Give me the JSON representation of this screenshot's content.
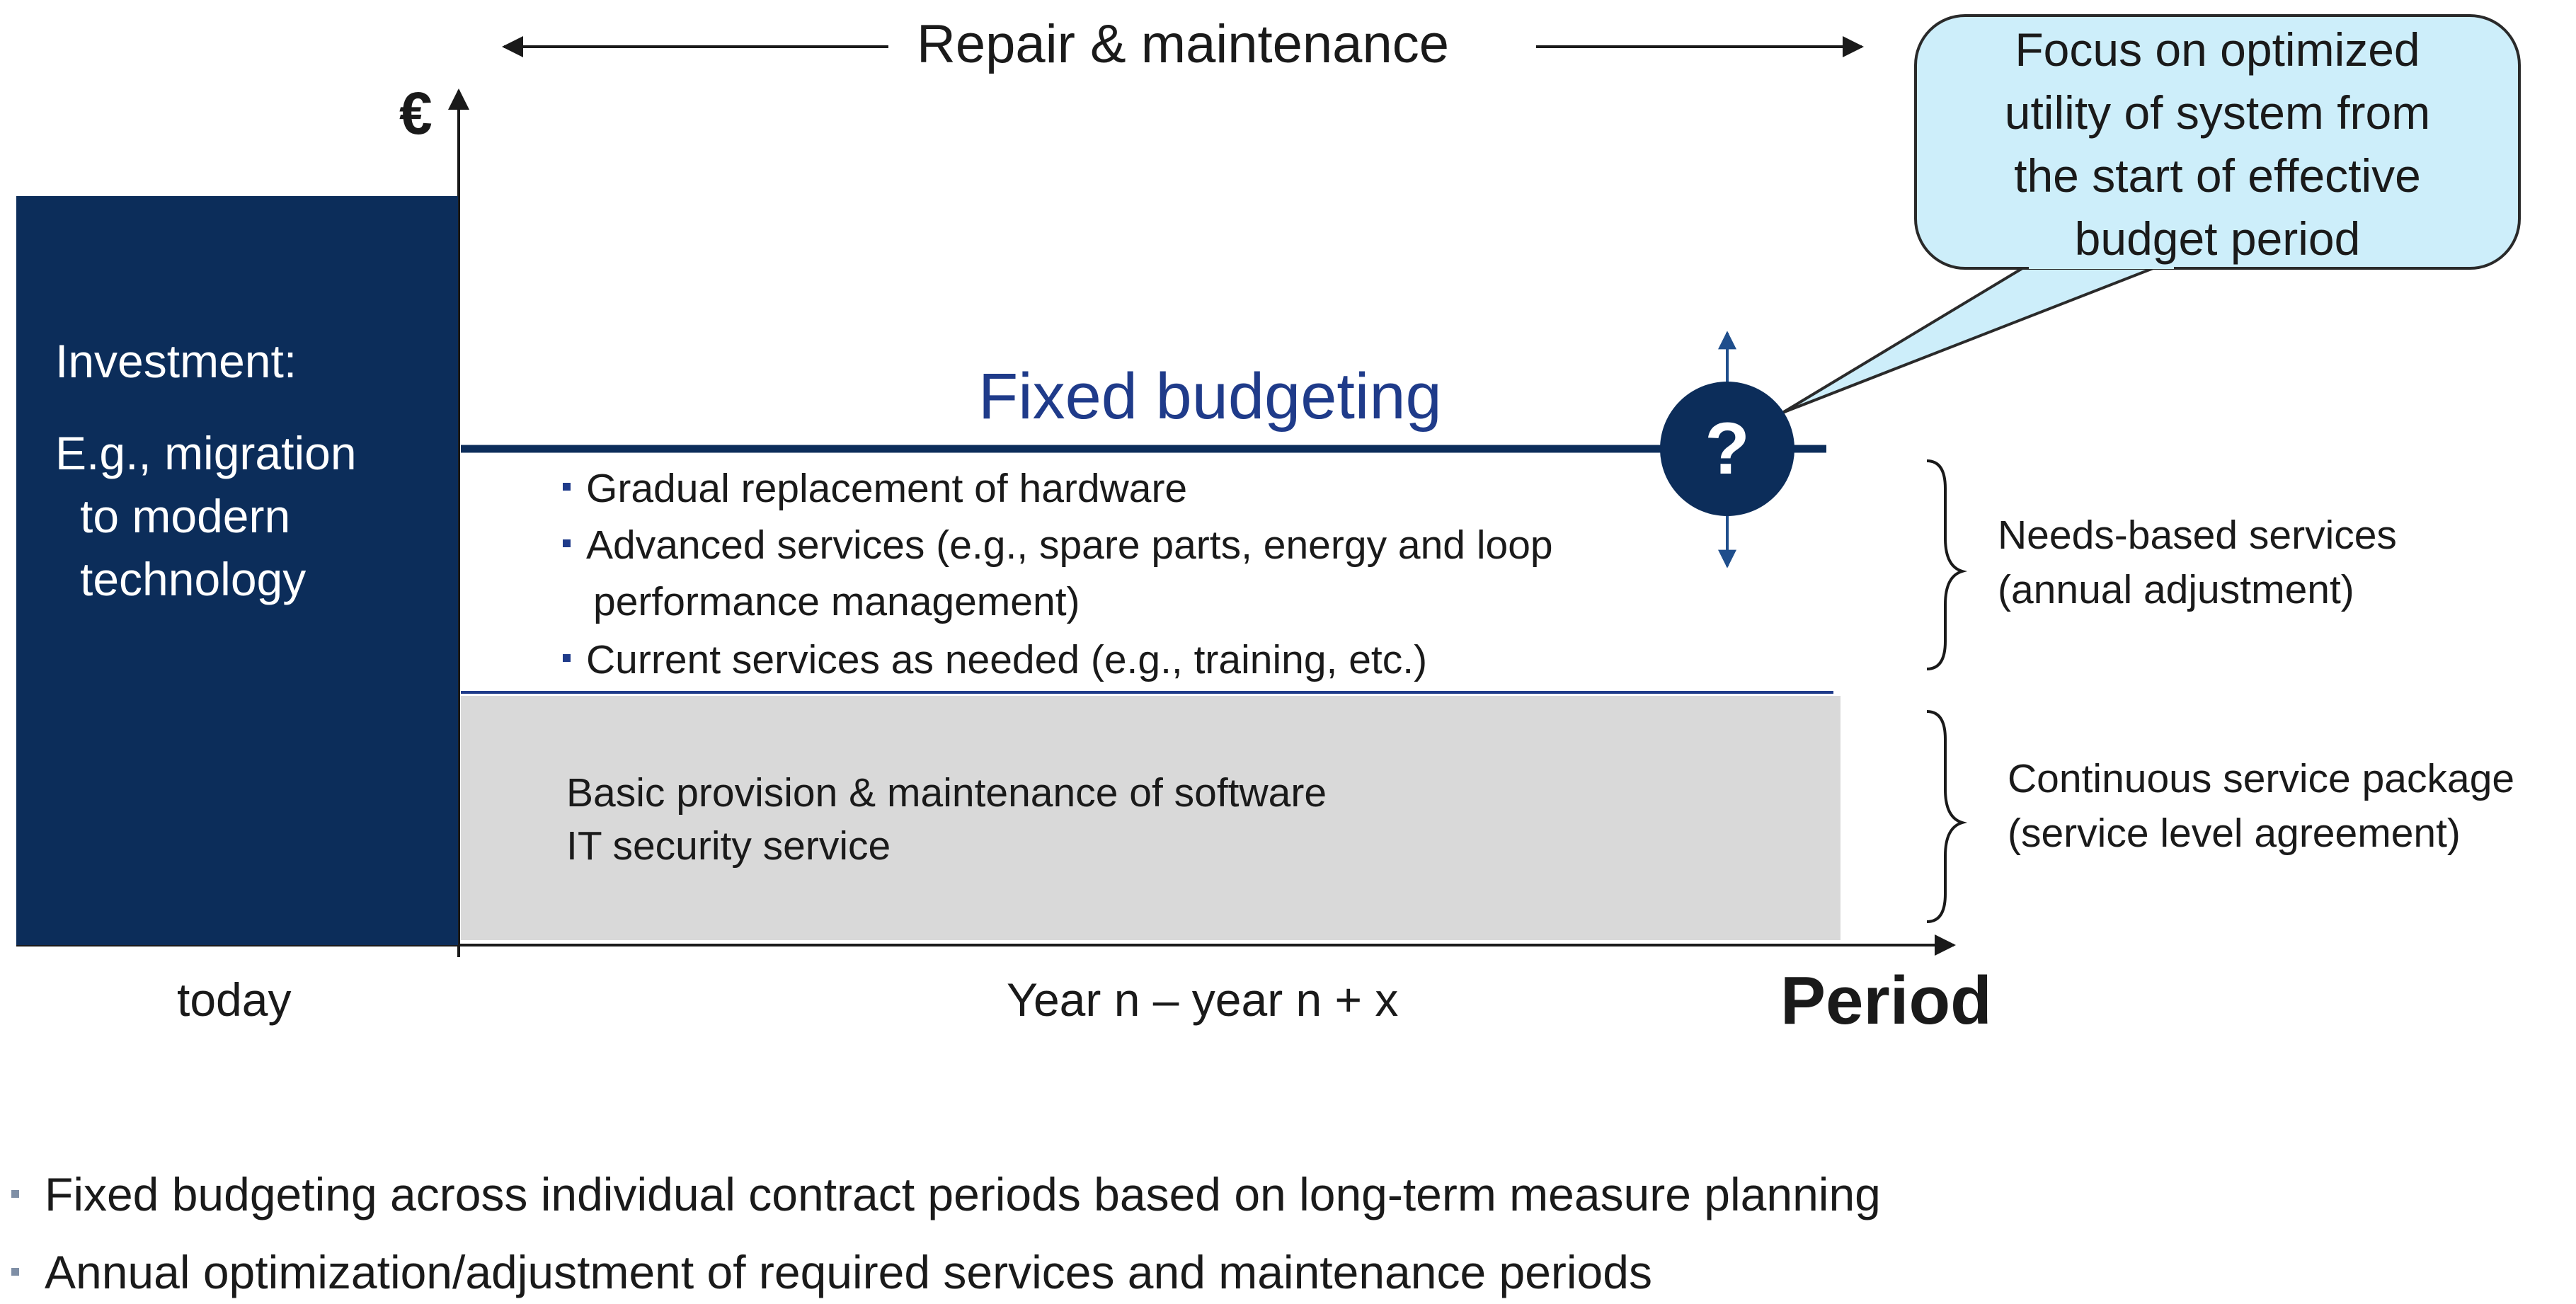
{
  "header": {
    "span_label": "Repair & maintenance"
  },
  "axes": {
    "y_label": "€",
    "x_label": "Period",
    "x_today": "today",
    "x_range": "Year n – year n + x"
  },
  "investment": {
    "title": "Investment:",
    "lines": [
      "E.g., migration",
      "to modern",
      "technology"
    ]
  },
  "fixed_budget": {
    "label": "Fixed budgeting",
    "marker": "?"
  },
  "needs_services": {
    "items": [
      {
        "lines": [
          "Gradual replacement of hardware"
        ]
      },
      {
        "lines": [
          "Advanced services (e.g., spare parts, energy and loop",
          "performance management)"
        ]
      },
      {
        "lines": [
          "Current services as needed (e.g., training, etc.)"
        ]
      }
    ],
    "brace_label": [
      "Needs-based services",
      "(annual adjustment)"
    ]
  },
  "continuous_services": {
    "lines": [
      "Basic provision & maintenance of software",
      "IT security service"
    ],
    "brace_label": [
      "Continuous service package",
      "(service level agreement)"
    ]
  },
  "callout": {
    "lines": [
      "Focus on optimized",
      "utility of system from",
      "the start of effective",
      "budget period"
    ]
  },
  "notes": [
    "Fixed budgeting across individual contract periods based on long-term measure planning",
    "Annual optimization/adjustment of required services and maintenance periods"
  ],
  "colors": {
    "navy": "#0c2d5a",
    "accent_blue": "#1f3b8a",
    "grey_fill": "#d9d9d9",
    "callout_fill": "#cdeefa"
  }
}
